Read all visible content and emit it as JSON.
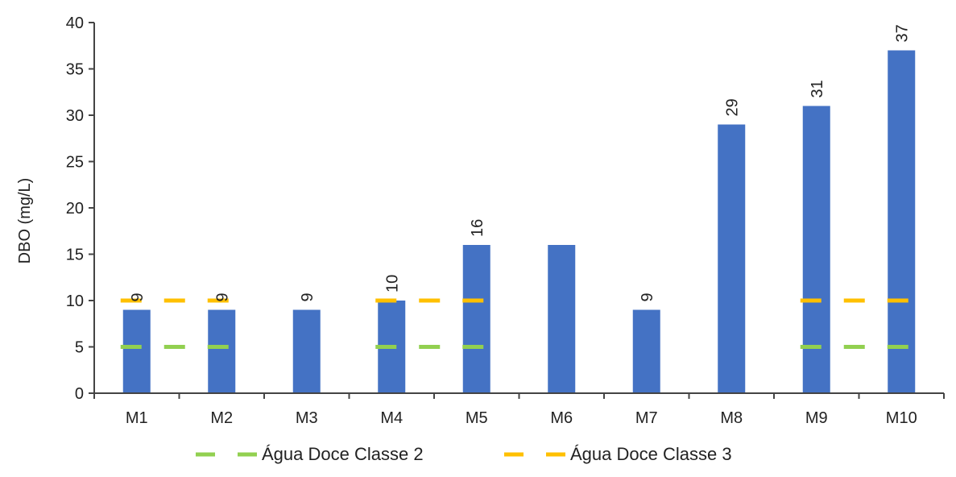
{
  "chart_data": {
    "type": "bar",
    "title": "",
    "xlabel": "",
    "ylabel": "DBO (mg/L)",
    "ylim": [
      0,
      40
    ],
    "yticks": [
      0,
      5,
      10,
      15,
      20,
      25,
      30,
      35,
      40
    ],
    "categories": [
      "M1",
      "M2",
      "M3",
      "M4",
      "M5",
      "M6",
      "M7",
      "M8",
      "M9",
      "M10"
    ],
    "series": [
      {
        "type": "bar",
        "values": [
          9,
          9,
          9,
          10,
          16,
          16,
          9,
          29,
          31,
          37
        ],
        "data_labels": [
          "9",
          "9",
          "9",
          "10",
          "16",
          "",
          "9",
          "29",
          "31",
          "37"
        ],
        "color": "#4472C4"
      },
      {
        "name": "Água Doce Classe 2",
        "type": "reference-dashes",
        "value": 5,
        "segments": [
          [
            "M1",
            "M2"
          ],
          [
            "M4",
            "M5"
          ],
          [
            "M9",
            "M10"
          ]
        ],
        "color": "#92D050"
      },
      {
        "name": "Água Doce Classe 3",
        "type": "reference-dashes",
        "value": 10,
        "segments": [
          [
            "M1",
            "M2"
          ],
          [
            "M4",
            "M5"
          ],
          [
            "M9",
            "M10"
          ]
        ],
        "color": "#FFC000"
      }
    ],
    "legend_position": "bottom",
    "grid": false
  }
}
